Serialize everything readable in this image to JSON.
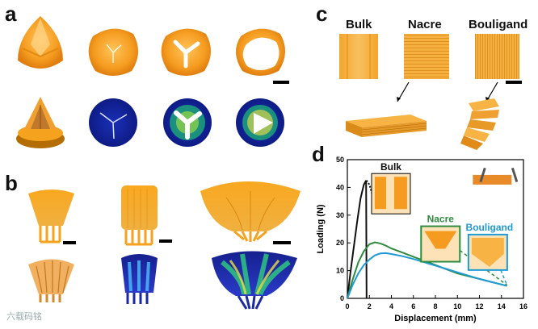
{
  "panels": {
    "a": "a",
    "b": "b",
    "c": "c",
    "d": "d"
  },
  "panel_c": {
    "labels": [
      "Bulk",
      "Nacre",
      "Bouligand"
    ]
  },
  "chart_data": {
    "type": "line",
    "title": "",
    "xlabel": "Displacement (mm)",
    "ylabel": "Loading (N)",
    "xlim": [
      0,
      16
    ],
    "ylim": [
      0,
      50
    ],
    "xticks": [
      0,
      2,
      4,
      6,
      8,
      10,
      12,
      14,
      16
    ],
    "yticks": [
      0,
      10,
      20,
      30,
      40,
      50
    ],
    "series": [
      {
        "name": "Bulk",
        "color": "#111111",
        "x": [
          0,
          0.3,
          0.6,
          0.9,
          1.2,
          1.5,
          1.7,
          1.75
        ],
        "y": [
          0,
          10,
          19,
          28,
          36,
          41,
          42.5,
          0
        ]
      },
      {
        "name": "Bulk-tail",
        "color": "#111111",
        "dotted": true,
        "x": [
          1.75,
          2.0,
          2.3
        ],
        "y": [
          42.5,
          41,
          37
        ]
      },
      {
        "name": "Nacre",
        "color": "#2e8b3e",
        "x": [
          0,
          0.5,
          1.0,
          1.5,
          2.0,
          2.5,
          3.0,
          3.5,
          4.0,
          5.0,
          6.0,
          7.0,
          8.0,
          9.0,
          10.0,
          11.0,
          12.0,
          13.0,
          14.0,
          14.5
        ],
        "y": [
          0,
          7,
          13,
          17,
          19.5,
          20.2,
          19.8,
          19,
          18,
          16.5,
          15,
          13.5,
          12,
          10.5,
          9,
          8,
          7,
          6,
          5,
          4.5
        ]
      },
      {
        "name": "Bouligand",
        "color": "#1e9bd7",
        "x": [
          0,
          0.5,
          1.0,
          1.5,
          2.0,
          2.5,
          3.0,
          3.5,
          4.0,
          5.0,
          6.0,
          7.0,
          8.0,
          9.0,
          10.0,
          11.0,
          12.0,
          13.0,
          14.0,
          14.5
        ],
        "y": [
          0,
          5,
          9,
          12,
          14,
          15.5,
          16.2,
          16.3,
          16,
          15.2,
          14.2,
          13,
          11.8,
          10.6,
          9.4,
          8.2,
          7,
          6,
          5,
          4.5
        ]
      }
    ],
    "annotations": [
      "Bulk",
      "Nacre",
      "Bouligand"
    ]
  },
  "watermark": "六载码铭"
}
